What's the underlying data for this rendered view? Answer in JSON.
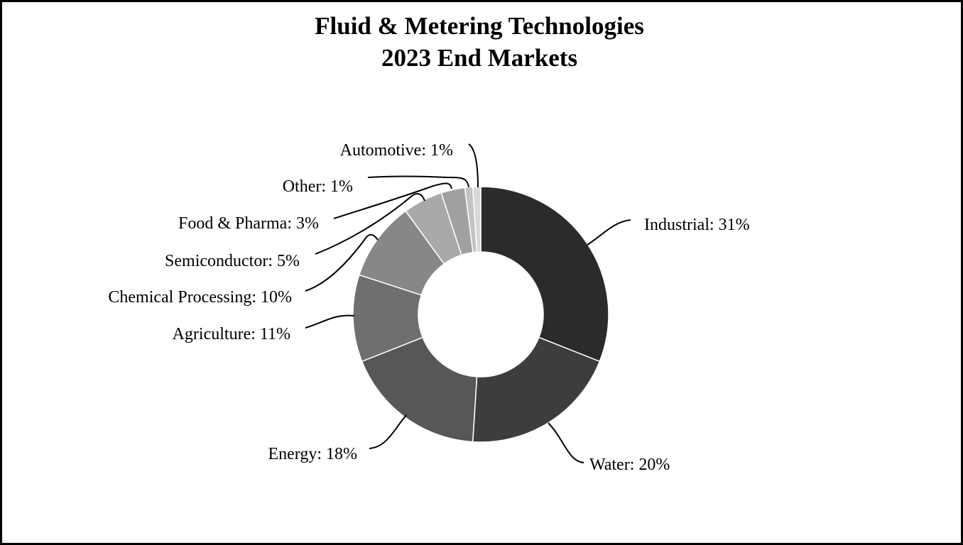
{
  "chart_data": {
    "type": "pie",
    "variant": "donut",
    "title_lines": [
      "Fluid & Metering Technologies",
      "2023 End Markets"
    ],
    "slices": [
      {
        "label": "Industrial",
        "value_label": "31%",
        "value": 31,
        "color": "#2b2b2b"
      },
      {
        "label": "Water",
        "value_label": "20%",
        "value": 20,
        "color": "#3d3d3d"
      },
      {
        "label": "Energy",
        "value_label": "18%",
        "value": 18,
        "color": "#575757"
      },
      {
        "label": "Agriculture",
        "value_label": "11%",
        "value": 11,
        "color": "#6f6f6f"
      },
      {
        "label": "Chemical Processing",
        "value_label": "10%",
        "value": 10,
        "color": "#878787"
      },
      {
        "label": "Semiconductor",
        "value_label": "5%",
        "value": 5,
        "color": "#a9a9a9"
      },
      {
        "label": "Food & Pharma",
        "value_label": "3%",
        "value": 3,
        "color": "#a0a0a0"
      },
      {
        "label": "Other",
        "value_label": "1%",
        "value": 1,
        "color": "#c2c2c2"
      },
      {
        "label": "Automotive",
        "value_label": "1%",
        "value": 1,
        "color": "#d9d9d9"
      }
    ],
    "start_angle": "12 o'clock",
    "direction": "clockwise",
    "legend": "none (labels beside slices)"
  }
}
